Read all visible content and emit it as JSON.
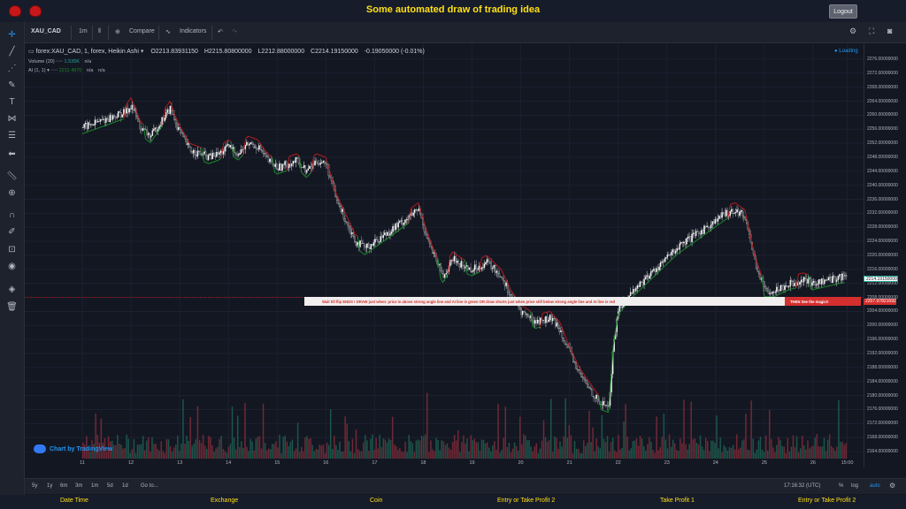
{
  "header": {
    "title": "Some automated draw of trading idea",
    "logout_label": "Logout"
  },
  "toolbar": {
    "symbol": "XAU_CAD",
    "interval": "1m",
    "compare_label": "Compare",
    "indicators_label": "Indicators"
  },
  "legend": {
    "main_title": "forex:XAU_CAD, 1, forex, Heikin Ashi",
    "open": "O2213.83931150",
    "high": "H2215.80800000",
    "low": "L2212.88000000",
    "close": "C2214.19150000",
    "change": "-0.19050000 (-0.01%)",
    "volume_label": "Volume (20)",
    "volume_value": "1.535K",
    "volume_na": "n/a",
    "ai_label": "AI (1, 1)",
    "ai_value": "2211.4970",
    "ai_na1": "n/a",
    "ai_na2": "n/a",
    "loading": "Loading"
  },
  "annotation": {
    "text": "Wait till flip ENDS  !    DRAW just when:  price is above strong angle line and AI line is green          OR          draw shorts just when price still below strong angle line and AI line is red",
    "magic": "THEN See the magic!!"
  },
  "watermark": "Chart by TradingView",
  "bottom_toolbar": {
    "ranges": [
      "5y",
      "1y",
      "6m",
      "3m",
      "1m",
      "5d",
      "1d"
    ],
    "goto": "Go to...",
    "time": "17:16:32 (UTC)",
    "percent": "%",
    "log": "log",
    "auto": "auto"
  },
  "footer": {
    "links": [
      "Date Time",
      "Exchange",
      "Coin",
      "Entry or Take Profit 2",
      "Take Profit 1",
      "Entry or Take Profit 2"
    ]
  },
  "colors": {
    "accent": "#ffe014",
    "up": "#26a69a",
    "down": "#ef5350",
    "ai_green": "#1b8a2a",
    "ai_red": "#b71c1c",
    "background": "#131722"
  },
  "chart_data": {
    "type": "line",
    "symbol": "XAU_CAD",
    "style": "Heikin Ashi",
    "x_ticks": [
      "11",
      "12",
      "13",
      "14",
      "15",
      "16",
      "17",
      "18",
      "19",
      "20",
      "21",
      "22",
      "23",
      "24",
      "25",
      "26",
      "15:00"
    ],
    "y_ticks": [
      "2276.00000000",
      "2272.00000000",
      "2268.00000000",
      "2264.00000000",
      "2260.00000000",
      "2256.00000000",
      "2252.00000000",
      "2248.00000000",
      "2244.00000000",
      "2240.00000000",
      "2236.00000000",
      "2232.00000000",
      "2228.00000000",
      "2224.00000000",
      "2220.00000000",
      "2216.00000000",
      "2212.00000000",
      "2208.00000000",
      "2204.00000000",
      "2200.00000000",
      "2196.00000000",
      "2192.00000000",
      "2188.00000000",
      "2184.00000000",
      "2180.00000000",
      "2176.00000000",
      "2172.00000000",
      "2168.00000000",
      "2164.00000000"
    ],
    "ylim": [
      2162,
      2278
    ],
    "last_price": "2214.19150000",
    "line_price": "2207.97821692",
    "line_value": 2207.978,
    "price_path": [
      [
        11,
        2256.5
      ],
      [
        11.3,
        2258
      ],
      [
        11.6,
        2259.5
      ],
      [
        11.9,
        2261
      ],
      [
        12.0,
        2263
      ],
      [
        12.2,
        2256
      ],
      [
        12.4,
        2254
      ],
      [
        12.6,
        2258
      ],
      [
        12.8,
        2262
      ],
      [
        12.9,
        2258
      ],
      [
        13.0,
        2255
      ],
      [
        13.2,
        2250
      ],
      [
        13.4,
        2249
      ],
      [
        13.6,
        2248
      ],
      [
        13.8,
        2249
      ],
      [
        14.0,
        2251
      ],
      [
        14.2,
        2249
      ],
      [
        14.4,
        2252
      ],
      [
        14.6,
        2251
      ],
      [
        14.8,
        2247
      ],
      [
        15.0,
        2245
      ],
      [
        15.2,
        2246
      ],
      [
        15.4,
        2247
      ],
      [
        15.6,
        2244
      ],
      [
        15.8,
        2247
      ],
      [
        16.0,
        2246
      ],
      [
        16.2,
        2236
      ],
      [
        16.4,
        2230
      ],
      [
        16.6,
        2224
      ],
      [
        16.8,
        2222
      ],
      [
        17.0,
        2224
      ],
      [
        17.3,
        2227
      ],
      [
        17.6,
        2230
      ],
      [
        17.9,
        2233
      ],
      [
        18.0,
        2228
      ],
      [
        18.2,
        2220
      ],
      [
        18.4,
        2214
      ],
      [
        18.6,
        2219
      ],
      [
        18.8,
        2217
      ],
      [
        19.0,
        2216
      ],
      [
        19.3,
        2218
      ],
      [
        19.6,
        2214
      ],
      [
        19.8,
        2208
      ],
      [
        20.0,
        2204
      ],
      [
        20.3,
        2201
      ],
      [
        20.6,
        2202
      ],
      [
        20.8,
        2199
      ],
      [
        21.0,
        2192
      ],
      [
        21.2,
        2186
      ],
      [
        21.4,
        2182
      ],
      [
        21.6,
        2178
      ],
      [
        21.8,
        2177
      ],
      [
        21.9,
        2196
      ],
      [
        22.0,
        2205
      ],
      [
        22.3,
        2210
      ],
      [
        22.6,
        2214
      ],
      [
        22.9,
        2218
      ],
      [
        23.2,
        2222
      ],
      [
        23.5,
        2225
      ],
      [
        23.8,
        2228
      ],
      [
        24.0,
        2230
      ],
      [
        24.2,
        2232
      ],
      [
        24.4,
        2233
      ],
      [
        24.6,
        2231
      ],
      [
        24.8,
        2218
      ],
      [
        25.0,
        2210
      ],
      [
        25.2,
        2210
      ],
      [
        25.5,
        2212
      ],
      [
        25.8,
        2213
      ],
      [
        26.0,
        2212
      ],
      [
        26.3,
        2213
      ],
      [
        26.6,
        2214
      ]
    ]
  }
}
